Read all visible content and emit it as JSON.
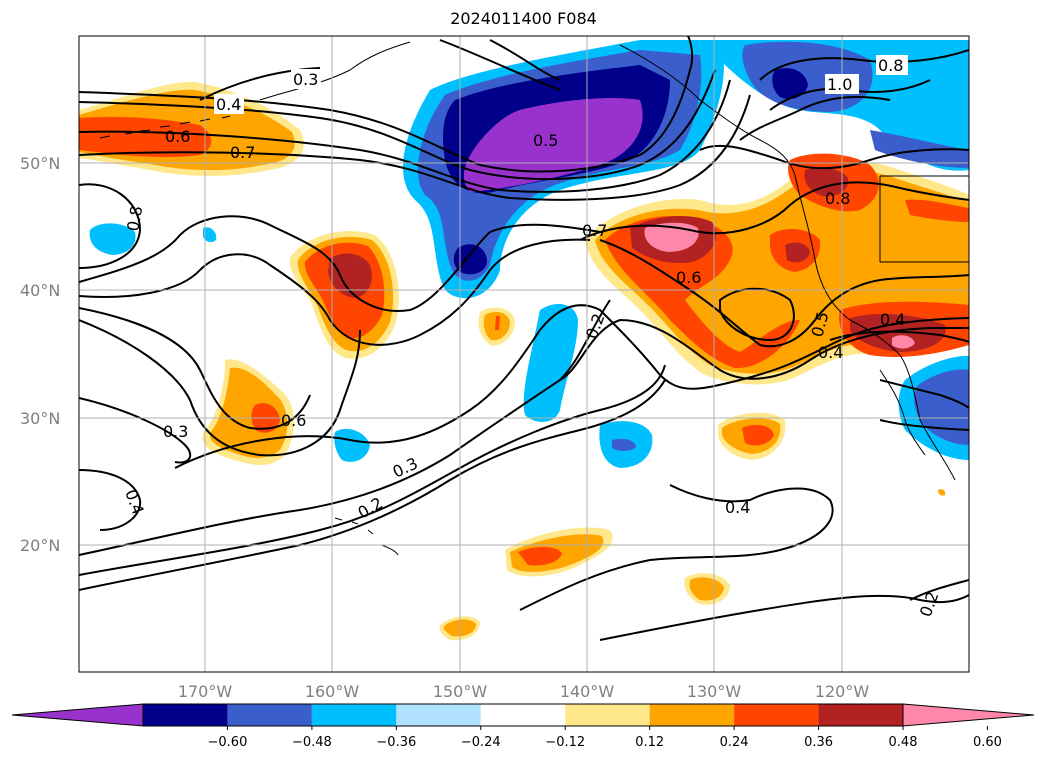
{
  "title": "2024011400 F084",
  "latitude_labels": [
    "50°N",
    "40°N",
    "30°N",
    "20°N"
  ],
  "longitude_labels": [
    "170°W",
    "160°W",
    "150°W",
    "140°W",
    "130°W",
    "120°W"
  ],
  "contour_labels": [
    "0.3",
    "0.4",
    "0.6",
    "0.7",
    "0.5",
    "1.0",
    "0.8",
    "0.8",
    "0.8",
    "0.7",
    "0.6",
    "0.4",
    "0.4",
    "0.5",
    "0.2",
    "0.3",
    "0.6",
    "0.3",
    "0.2",
    "0.4",
    "0.4",
    "0.2"
  ],
  "colorbar": {
    "tick_labels": [
      "−0.60",
      "−0.48",
      "−0.36",
      "−0.24",
      "−0.12",
      "0.12",
      "0.24",
      "0.36",
      "0.48",
      "0.60"
    ],
    "colors": [
      "#9932cc",
      "#00008b",
      "#3a5fcd",
      "#00bfff",
      "#b0e2ff",
      "#ffffff",
      "#ffe88c",
      "#ffa500",
      "#ff4500",
      "#b22222",
      "#ff88aa"
    ]
  }
}
